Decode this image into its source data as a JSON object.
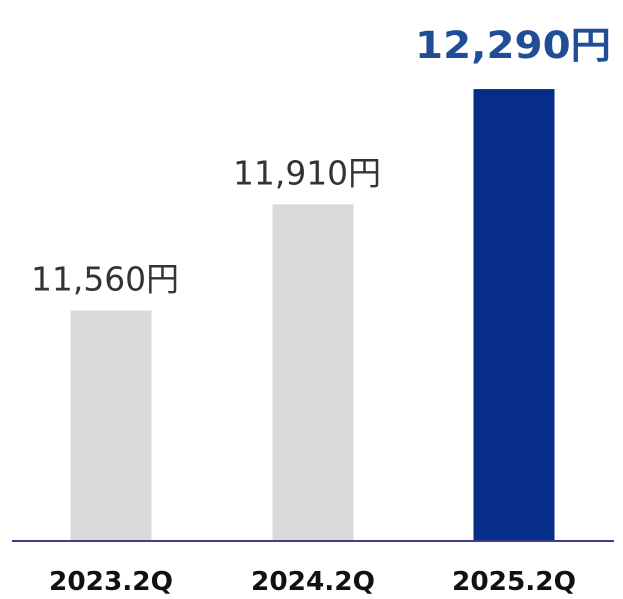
{
  "chart_data": {
    "type": "bar",
    "categories": [
      "2023.2Q",
      "2024.2Q",
      "2025.2Q"
    ],
    "values": [
      11560,
      11910,
      12290
    ],
    "value_labels": [
      "11,560円",
      "11,910円",
      "12,290円"
    ],
    "highlight_index": 2,
    "title": "",
    "xlabel": "",
    "ylabel": "",
    "ylim": [
      10800,
      12310
    ],
    "grid": false,
    "legend": "none"
  },
  "colors": {
    "bar": "#d9d9d9",
    "bar_highlight": "#062d87",
    "value_text": "#333333",
    "value_text_highlight": "#1f4e96",
    "axis": "#3a3f8f",
    "category_text": "#111111"
  }
}
